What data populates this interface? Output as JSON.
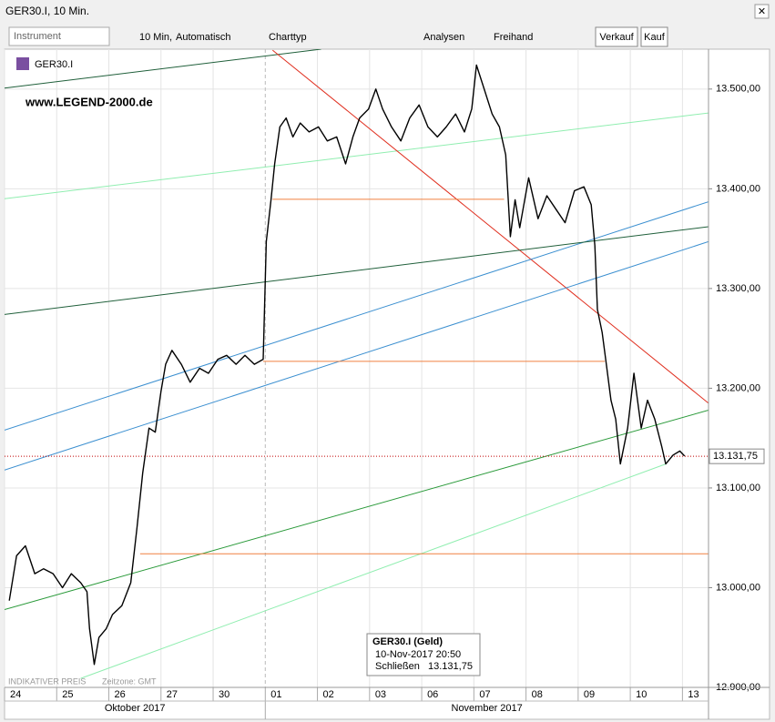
{
  "window": {
    "title": "GER30.I, 10 Min."
  },
  "toolbar": {
    "instrument": "Instrument",
    "interval": "10 Min,",
    "mode": "Automatisch",
    "chart_type": "Charttyp",
    "analyses": "Analysen",
    "freehand": "Freihand",
    "sell": "Verkauf",
    "buy": "Kauf"
  },
  "watermark": "www.LEGEND-2000.de",
  "footer": {
    "note": "INDIKATIVER PREIS",
    "timezone": "Zeitzone: GMT"
  },
  "tooltip": {
    "title": "GER30.I (Geld)",
    "time": "10-Nov-2017 20:50",
    "field": "Schließen",
    "value": "13.131,75"
  },
  "chart_data": {
    "type": "line",
    "legend": "GER30.I",
    "months": [
      {
        "value": 0,
        "label": "Oktober 2017"
      },
      {
        "value": 5,
        "label": "November 2017"
      }
    ],
    "xlim": [
      0,
      13.5
    ],
    "xticks": [
      {
        "value": 0,
        "label": "24"
      },
      {
        "value": 1,
        "label": "25"
      },
      {
        "value": 2,
        "label": "26"
      },
      {
        "value": 3,
        "label": "27"
      },
      {
        "value": 4,
        "label": "30"
      },
      {
        "value": 5,
        "label": "01"
      },
      {
        "value": 6,
        "label": "02"
      },
      {
        "value": 7,
        "label": "03"
      },
      {
        "value": 8,
        "label": "06"
      },
      {
        "value": 9,
        "label": "07"
      },
      {
        "value": 10,
        "label": "08"
      },
      {
        "value": 11,
        "label": "09"
      },
      {
        "value": 12,
        "label": "10"
      },
      {
        "value": 13,
        "label": "13"
      }
    ],
    "ylim": [
      12900,
      13540
    ],
    "yticks": [
      {
        "value": 12900,
        "label": "12.900,00"
      },
      {
        "value": 13000,
        "label": "13.000,00"
      },
      {
        "value": 13100,
        "label": "13.100,00"
      },
      {
        "value": 13200,
        "label": "13.200,00"
      },
      {
        "value": 13300,
        "label": "13.300,00"
      },
      {
        "value": 13400,
        "label": "13.400,00"
      },
      {
        "value": 13500,
        "label": "13.500,00"
      }
    ],
    "grid": true,
    "last_price": {
      "value": 13131.75,
      "label": "13.131,75",
      "color": "#c00000"
    },
    "series": [
      {
        "name": "GER30.I",
        "color": "#000000",
        "x": [
          0.09,
          0.23,
          0.4,
          0.58,
          0.75,
          0.93,
          1.11,
          1.28,
          1.46,
          1.58,
          1.63,
          1.72,
          1.81,
          1.95,
          2.07,
          2.25,
          2.42,
          2.54,
          2.65,
          2.77,
          2.89,
          3.0,
          3.09,
          3.21,
          3.39,
          3.56,
          3.74,
          3.91,
          4.09,
          4.26,
          4.44,
          4.61,
          4.79,
          4.96,
          5.02,
          5.11,
          5.18,
          5.28,
          5.4,
          5.53,
          5.67,
          5.84,
          6.02,
          6.19,
          6.37,
          6.54,
          6.68,
          6.81,
          6.98,
          7.12,
          7.25,
          7.42,
          7.6,
          7.77,
          7.95,
          8.12,
          8.3,
          8.47,
          8.65,
          8.82,
          8.96,
          9.05,
          9.18,
          9.35,
          9.49,
          9.61,
          9.7,
          9.79,
          9.88,
          10.05,
          10.23,
          10.4,
          10.58,
          10.75,
          10.93,
          11.11,
          11.25,
          11.32,
          11.37,
          11.46,
          11.54,
          11.63,
          11.72,
          11.81,
          11.95,
          12.07,
          12.21,
          12.33,
          12.47,
          12.6,
          12.68,
          12.82,
          12.95,
          13.04
        ],
        "values": [
          12987,
          13032,
          13042,
          13014,
          13019,
          13014,
          13000,
          13014,
          13005,
          12996,
          12959,
          12923,
          12950,
          12959,
          12973,
          12982,
          13005,
          13060,
          13115,
          13160,
          13156,
          13197,
          13224,
          13238,
          13224,
          13206,
          13220,
          13215,
          13229,
          13233,
          13224,
          13233,
          13224,
          13229,
          13347,
          13389,
          13425,
          13462,
          13471,
          13452,
          13466,
          13457,
          13462,
          13448,
          13452,
          13425,
          13452,
          13471,
          13480,
          13500,
          13480,
          13462,
          13448,
          13471,
          13484,
          13462,
          13452,
          13462,
          13475,
          13457,
          13480,
          13524,
          13503,
          13475,
          13462,
          13434,
          13352,
          13389,
          13361,
          13411,
          13370,
          13393,
          13379,
          13366,
          13398,
          13402,
          13384,
          13343,
          13279,
          13256,
          13224,
          13188,
          13169,
          13124,
          13160,
          13215,
          13160,
          13188,
          13169,
          13142,
          13124,
          13133,
          13137,
          13132
        ]
      }
    ],
    "trendlines": [
      {
        "color": "#1f5f3a",
        "x": [
          0,
          6.07
        ],
        "values": [
          13501,
          13540
        ]
      },
      {
        "color": "#90eeb0",
        "x": [
          0,
          13.5
        ],
        "values": [
          13390,
          13476
        ]
      },
      {
        "color": "#e03020",
        "x": [
          5.14,
          13.5
        ],
        "values": [
          13539,
          13185
        ]
      },
      {
        "color": "#3b8fd0",
        "x": [
          0,
          13.5
        ],
        "values": [
          13158,
          13387
        ]
      },
      {
        "color": "#3b8fd0",
        "x": [
          0,
          13.5
        ],
        "values": [
          13118,
          13347
        ]
      },
      {
        "color": "#1f5f3a",
        "x": [
          0,
          13.5
        ],
        "values": [
          13274,
          13362
        ]
      },
      {
        "color": "#2a9a3a",
        "x": [
          0,
          13.5
        ],
        "values": [
          12978,
          13178
        ]
      },
      {
        "color": "#90eeb0",
        "x": [
          1.46,
          12.68
        ],
        "values": [
          12909,
          13124
        ]
      },
      {
        "color": "#f08040",
        "x": [
          5.14,
          9.58
        ],
        "values": [
          13389.5,
          13389.5
        ]
      },
      {
        "color": "#f08040",
        "x": [
          4.96,
          11.51
        ],
        "values": [
          13227,
          13227
        ]
      },
      {
        "color": "#f08040",
        "x": [
          2.6,
          13.5
        ],
        "values": [
          13034,
          13034
        ]
      }
    ]
  }
}
